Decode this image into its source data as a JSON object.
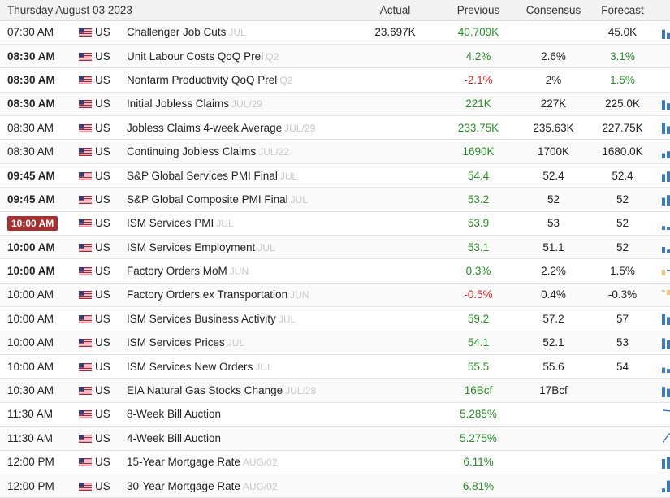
{
  "header": {
    "date": "Thursday August 03 2023",
    "actual": "Actual",
    "previous": "Previous",
    "consensus": "Consensus",
    "forecast": "Forecast"
  },
  "colors": {
    "positive": "#2a8a2a",
    "negative": "#c62828",
    "spark": "#3a7bbf",
    "spark_alt": "#f0c27a",
    "live_badge": "#a53232"
  },
  "rows": [
    {
      "time": "07:30 AM",
      "bold": false,
      "live": false,
      "country": "US",
      "event": "Challenger Job Cuts",
      "ref": "JUL",
      "actual": "23.697K",
      "previous": "40.709K",
      "prev_class": "pos",
      "consensus": "",
      "forecast": "45.0K",
      "fore_class": "",
      "spark": {
        "type": "bar",
        "color": "spark",
        "values": [
          0.7,
          0.45,
          0.55,
          0.2
        ]
      }
    },
    {
      "time": "08:30 AM",
      "bold": true,
      "live": false,
      "country": "US",
      "event": "Unit Labour Costs QoQ Prel",
      "ref": "Q2",
      "actual": "",
      "previous": "4.2%",
      "prev_class": "pos",
      "consensus": "2.6%",
      "forecast": "3.1%",
      "fore_class": "pos",
      "spark": null
    },
    {
      "time": "08:30 AM",
      "bold": true,
      "live": false,
      "country": "US",
      "event": "Nonfarm Productivity QoQ Prel",
      "ref": "Q2",
      "actual": "",
      "previous": "-2.1%",
      "prev_class": "neg",
      "consensus": "2%",
      "forecast": "1.5%",
      "fore_class": "pos",
      "spark": null
    },
    {
      "time": "08:30 AM",
      "bold": true,
      "live": false,
      "country": "US",
      "event": "Initial Jobless Claims",
      "ref": "JUL/29",
      "actual": "",
      "previous": "221K",
      "prev_class": "pos",
      "consensus": "227K",
      "forecast": "225.0K",
      "fore_class": "",
      "spark": {
        "type": "bar",
        "color": "spark",
        "values": [
          0.8,
          0.55,
          0.4,
          0.3
        ]
      }
    },
    {
      "time": "08:30 AM",
      "bold": false,
      "live": false,
      "country": "US",
      "event": "Jobless Claims 4-week Average",
      "ref": "JUL/29",
      "actual": "",
      "previous": "233.75K",
      "prev_class": "pos",
      "consensus": "235.63K",
      "forecast": "227.75K",
      "fore_class": "",
      "spark": {
        "type": "bar",
        "color": "spark",
        "values": [
          0.85,
          0.6,
          0.45,
          0.35
        ]
      }
    },
    {
      "time": "08:30 AM",
      "bold": false,
      "live": false,
      "country": "US",
      "event": "Continuing Jobless Claims",
      "ref": "JUL/22",
      "actual": "",
      "previous": "1690K",
      "prev_class": "pos",
      "consensus": "1700K",
      "forecast": "1680.0K",
      "fore_class": "",
      "spark": {
        "type": "bar",
        "color": "spark",
        "values": [
          0.4,
          0.55,
          0.7,
          0.8
        ]
      }
    },
    {
      "time": "09:45 AM",
      "bold": true,
      "live": false,
      "country": "US",
      "event": "S&P Global Services PMI Final",
      "ref": "JUL",
      "actual": "",
      "previous": "54.4",
      "prev_class": "pos",
      "consensus": "52.4",
      "forecast": "52.4",
      "fore_class": "",
      "spark": {
        "type": "bar",
        "color": "spark",
        "values": [
          0.6,
          0.8,
          0.85,
          0.55
        ]
      }
    },
    {
      "time": "09:45 AM",
      "bold": true,
      "live": false,
      "country": "US",
      "event": "S&P Global Composite PMI Final",
      "ref": "JUL",
      "actual": "",
      "previous": "53.2",
      "prev_class": "pos",
      "consensus": "52",
      "forecast": "52",
      "fore_class": "",
      "spark": {
        "type": "bar",
        "color": "spark",
        "values": [
          0.6,
          0.8,
          0.8,
          0.5
        ]
      }
    },
    {
      "time": "10:00 AM",
      "bold": true,
      "live": true,
      "country": "US",
      "event": "ISM Services PMI",
      "ref": "JUL",
      "actual": "",
      "previous": "53.9",
      "prev_class": "pos",
      "consensus": "53",
      "forecast": "52",
      "fore_class": "",
      "spark": {
        "type": "bar",
        "color": "spark",
        "values": [
          0.3,
          0.2,
          0.45,
          0.85
        ]
      }
    },
    {
      "time": "10:00 AM",
      "bold": true,
      "live": false,
      "country": "US",
      "event": "ISM Services Employment",
      "ref": "JUL",
      "actual": "",
      "previous": "53.1",
      "prev_class": "pos",
      "consensus": "51.1",
      "forecast": "52",
      "fore_class": "",
      "spark": {
        "type": "bar",
        "color": "spark",
        "values": [
          0.5,
          0.3,
          0.4,
          0.8
        ]
      }
    },
    {
      "time": "10:00 AM",
      "bold": true,
      "live": false,
      "country": "US",
      "event": "Factory Orders MoM",
      "ref": "JUN",
      "actual": "",
      "previous": "0.3%",
      "prev_class": "pos",
      "consensus": "2.2%",
      "forecast": "1.5%",
      "fore_class": "",
      "spark": {
        "type": "mixed",
        "values": [
          0.7,
          0.1,
          0.1,
          0.1
        ]
      }
    },
    {
      "time": "10:00 AM",
      "bold": false,
      "live": false,
      "country": "US",
      "event": "Factory Orders ex Transportation",
      "ref": "JUN",
      "actual": "",
      "previous": "-0.5%",
      "prev_class": "neg",
      "consensus": "0.4%",
      "forecast": "-0.3%",
      "fore_class": "",
      "spark": {
        "type": "neg",
        "values": [
          0.2,
          0.5,
          0.3,
          0.7
        ]
      }
    },
    {
      "time": "10:00 AM",
      "bold": false,
      "live": false,
      "country": "US",
      "event": "ISM Services Business Activity",
      "ref": "JUL",
      "actual": "",
      "previous": "59.2",
      "prev_class": "pos",
      "consensus": "57.2",
      "forecast": "57",
      "fore_class": "",
      "spark": {
        "type": "bar",
        "color": "spark",
        "values": [
          0.85,
          0.6,
          0.3,
          0.5
        ]
      }
    },
    {
      "time": "10:00 AM",
      "bold": false,
      "live": false,
      "country": "US",
      "event": "ISM Services Prices",
      "ref": "JUL",
      "actual": "",
      "previous": "54.1",
      "prev_class": "pos",
      "consensus": "52.1",
      "forecast": "53",
      "fore_class": "",
      "spark": {
        "type": "bar",
        "color": "spark",
        "values": [
          0.85,
          0.7,
          0.35,
          0.3
        ]
      }
    },
    {
      "time": "10:00 AM",
      "bold": false,
      "live": false,
      "country": "US",
      "event": "ISM Services New Orders",
      "ref": "JUL",
      "actual": "",
      "previous": "55.5",
      "prev_class": "pos",
      "consensus": "55.6",
      "forecast": "54",
      "fore_class": "",
      "spark": {
        "type": "bar",
        "color": "spark",
        "values": [
          0.4,
          0.3,
          0.25,
          0.85
        ]
      }
    },
    {
      "time": "10:30 AM",
      "bold": false,
      "live": false,
      "country": "US",
      "event": "EIA Natural Gas Stocks Change",
      "ref": "JUL/28",
      "actual": "",
      "previous": "16Bcf",
      "prev_class": "pos",
      "consensus": "17Bcf",
      "forecast": "",
      "fore_class": "",
      "spark": {
        "type": "bar",
        "color": "spark",
        "values": [
          0.8,
          0.65,
          0.5,
          0.35
        ]
      }
    },
    {
      "time": "11:30 AM",
      "bold": false,
      "live": false,
      "country": "US",
      "event": "8-Week Bill Auction",
      "ref": "",
      "actual": "",
      "previous": "5.285%",
      "prev_class": "pos",
      "consensus": "",
      "forecast": "",
      "fore_class": "",
      "spark": {
        "type": "line",
        "values": [
          0.8,
          0.75,
          0.7,
          0.1
        ]
      }
    },
    {
      "time": "11:30 AM",
      "bold": false,
      "live": false,
      "country": "US",
      "event": "4-Week Bill Auction",
      "ref": "",
      "actual": "",
      "previous": "5.275%",
      "prev_class": "pos",
      "consensus": "",
      "forecast": "",
      "fore_class": "",
      "spark": {
        "type": "line",
        "values": [
          0.1,
          0.8,
          0.7,
          0.2
        ]
      }
    },
    {
      "time": "12:00 PM",
      "bold": false,
      "live": false,
      "country": "US",
      "event": "15-Year Mortgage Rate",
      "ref": "AUG/02",
      "actual": "",
      "previous": "6.11%",
      "prev_class": "pos",
      "consensus": "",
      "forecast": "",
      "fore_class": "",
      "spark": {
        "type": "bar",
        "color": "spark",
        "values": [
          0.75,
          0.9,
          0.35,
          0.25
        ]
      }
    },
    {
      "time": "12:00 PM",
      "bold": false,
      "live": false,
      "country": "US",
      "event": "30-Year Mortgage Rate",
      "ref": "AUG/02",
      "actual": "",
      "previous": "6.81%",
      "prev_class": "pos",
      "consensus": "",
      "forecast": "",
      "fore_class": "",
      "spark": {
        "type": "bar",
        "color": "spark",
        "values": [
          0.3,
          0.9,
          0.35,
          0.25
        ]
      }
    }
  ]
}
